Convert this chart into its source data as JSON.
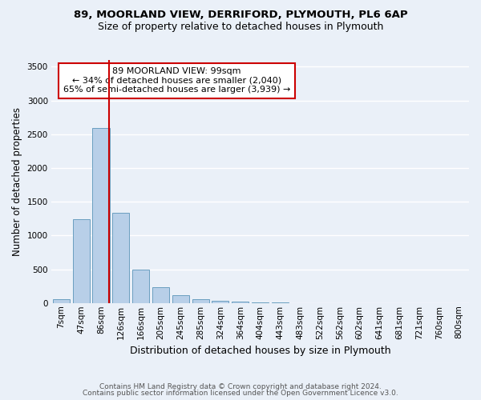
{
  "title_line1": "89, MOORLAND VIEW, DERRIFORD, PLYMOUTH, PL6 6AP",
  "title_line2": "Size of property relative to detached houses in Plymouth",
  "xlabel": "Distribution of detached houses by size in Plymouth",
  "ylabel": "Number of detached properties",
  "footer_line1": "Contains HM Land Registry data © Crown copyright and database right 2024.",
  "footer_line2": "Contains public sector information licensed under the Open Government Licence v3.0.",
  "bar_labels": [
    "7sqm",
    "47sqm",
    "86sqm",
    "126sqm",
    "166sqm",
    "205sqm",
    "245sqm",
    "285sqm",
    "324sqm",
    "364sqm",
    "404sqm",
    "443sqm",
    "483sqm",
    "522sqm",
    "562sqm",
    "602sqm",
    "641sqm",
    "681sqm",
    "721sqm",
    "760sqm",
    "800sqm"
  ],
  "bar_values": [
    55,
    1240,
    2590,
    1340,
    500,
    230,
    115,
    55,
    30,
    20,
    10,
    5,
    3,
    2,
    1,
    1,
    0,
    0,
    0,
    0,
    0
  ],
  "bar_color": "#b8cfe8",
  "bar_edge_color": "#6a9fc0",
  "ylim": [
    0,
    3600
  ],
  "yticks": [
    0,
    500,
    1000,
    1500,
    2000,
    2500,
    3000,
    3500
  ],
  "red_line_x": 2.42,
  "annotation_text": "89 MOORLAND VIEW: 99sqm\n← 34% of detached houses are smaller (2,040)\n65% of semi-detached houses are larger (3,939) →",
  "annotation_box_color": "#ffffff",
  "annotation_border_color": "#cc0000",
  "bg_color": "#eaf0f8",
  "plot_bg_color": "#eaf0f8",
  "grid_color": "#ffffff",
  "title_fontsize": 9.5,
  "subtitle_fontsize": 9,
  "tick_fontsize": 7.5,
  "ylabel_fontsize": 8.5,
  "xlabel_fontsize": 9
}
